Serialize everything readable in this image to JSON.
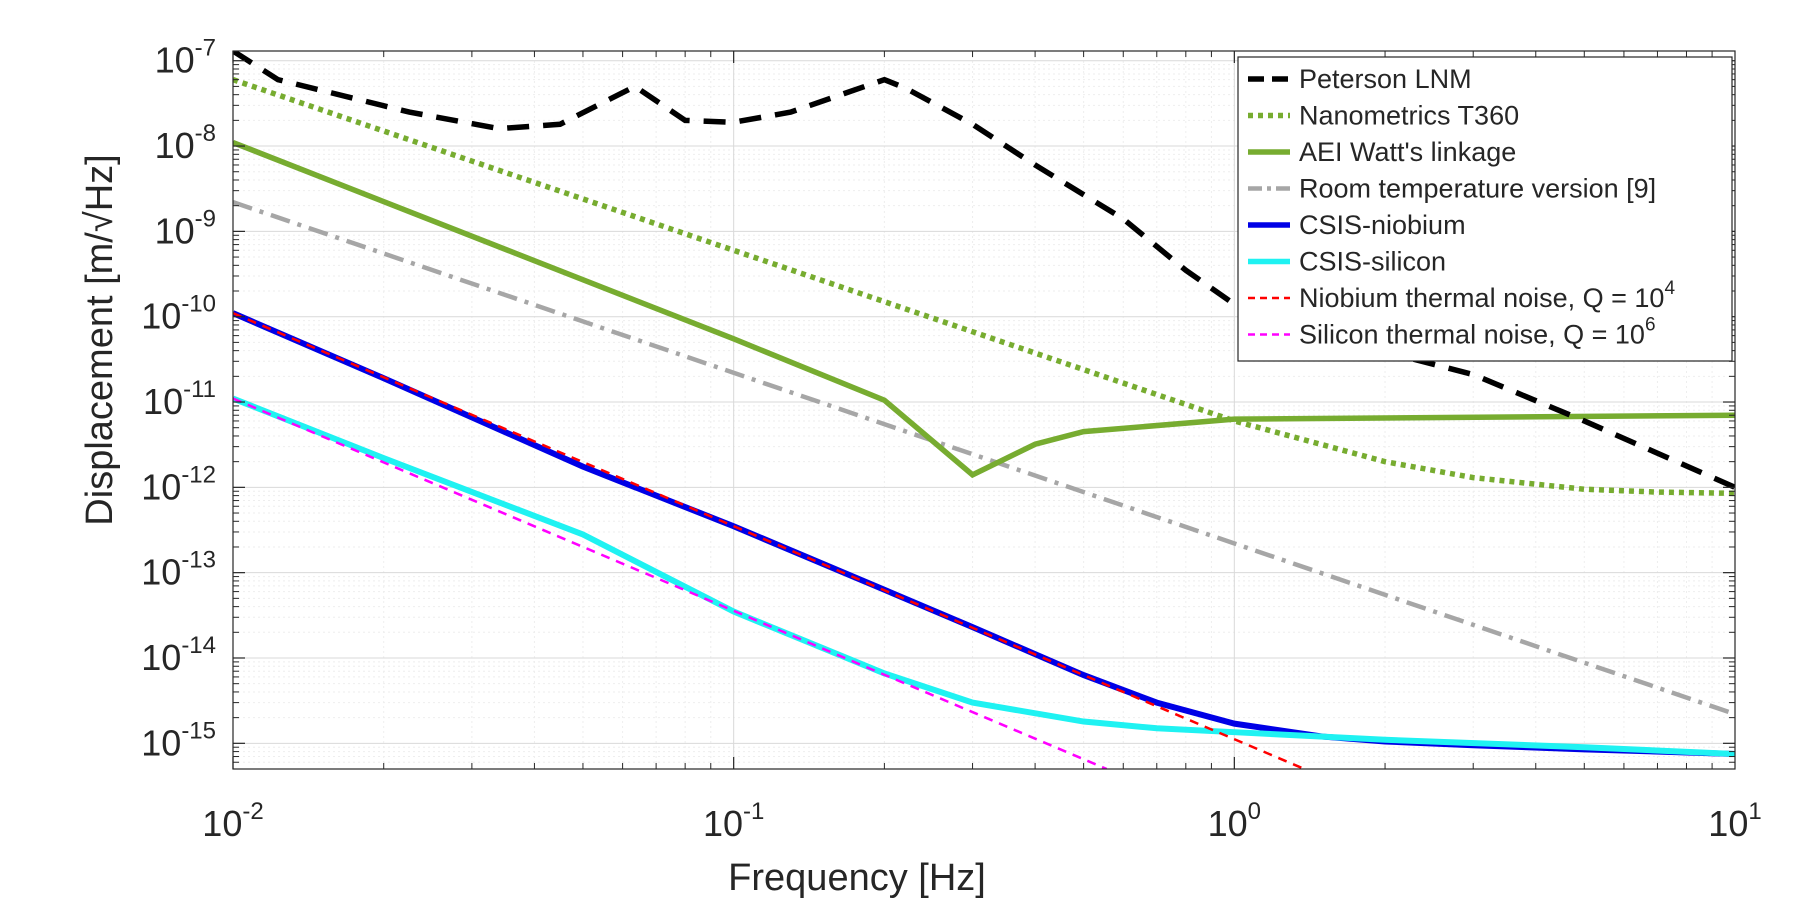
{
  "chart_data": {
    "type": "line",
    "xscale": "log",
    "yscale": "log",
    "xlabel": "Frequency [Hz]",
    "ylabel": "Displacement [m/√Hz]",
    "xlim": [
      0.01,
      10
    ],
    "ylim": [
      5e-16,
      1.3e-07
    ],
    "grid": true,
    "legend_position": "top-right",
    "x_ticks": [
      {
        "value": 0.01,
        "base": "10",
        "exp": "-2"
      },
      {
        "value": 0.1,
        "base": "10",
        "exp": "-1"
      },
      {
        "value": 1,
        "base": "10",
        "exp": "0"
      },
      {
        "value": 10,
        "base": "10",
        "exp": "1"
      }
    ],
    "y_ticks": [
      {
        "value": 1e-07,
        "base": "10",
        "exp": "-7"
      },
      {
        "value": 1e-08,
        "base": "10",
        "exp": "-8"
      },
      {
        "value": 1e-09,
        "base": "10",
        "exp": "-9"
      },
      {
        "value": 1e-10,
        "base": "10",
        "exp": "-10"
      },
      {
        "value": 1e-11,
        "base": "10",
        "exp": "-11"
      },
      {
        "value": 1e-12,
        "base": "10",
        "exp": "-12"
      },
      {
        "value": 1e-13,
        "base": "10",
        "exp": "-13"
      },
      {
        "value": 1e-14,
        "base": "10",
        "exp": "-14"
      },
      {
        "value": 1e-15,
        "base": "10",
        "exp": "-15"
      }
    ],
    "series": [
      {
        "id": "peterson",
        "name": "Peterson LNM",
        "name_sup": "",
        "color": "#000000",
        "style": "dashed",
        "x": [
          0.01,
          0.0123,
          0.0225,
          0.034,
          0.045,
          0.0635,
          0.08,
          0.1,
          0.13,
          0.2,
          0.22,
          0.3,
          0.4,
          0.6,
          0.8,
          1.0,
          1.5,
          3.0,
          5.0,
          10.0
        ],
        "y": [
          1.3e-07,
          6e-08,
          2.5e-08,
          1.6e-08,
          1.8e-08,
          5e-08,
          2e-08,
          1.9e-08,
          2.5e-08,
          6e-08,
          4.8e-08,
          1.8e-08,
          6e-09,
          1.4e-09,
          3.5e-10,
          1.4e-10,
          6e-11,
          2.1e-11,
          6e-12,
          1e-12
        ]
      },
      {
        "id": "t360",
        "name": "Nanometrics T360",
        "name_sup": "",
        "color": "#77ac30",
        "style": "dotted",
        "x": [
          0.01,
          0.02,
          0.05,
          0.1,
          0.2,
          0.5,
          1.0,
          2.0,
          3.0,
          5.0,
          7.0,
          10.0
        ],
        "y": [
          6e-08,
          1.5e-08,
          2.4e-09,
          6e-10,
          1.5e-10,
          2.4e-11,
          6e-12,
          2e-12,
          1.3e-12,
          9.5e-13,
          8.8e-13,
          8.5e-13
        ]
      },
      {
        "id": "aei",
        "name": "AEI Watt's linkage",
        "name_sup": "",
        "color": "#77ac30",
        "style": "solid",
        "x": [
          0.01,
          0.1,
          0.2,
          0.3,
          0.4,
          0.5,
          1.0,
          10.0
        ],
        "y": [
          1.1e-08,
          5.5e-11,
          1.05e-11,
          1.4e-12,
          3.2e-12,
          4.5e-12,
          6.3e-12,
          7e-12
        ]
      },
      {
        "id": "room",
        "name": "Room temperature version [9]",
        "name_sup": "",
        "color": "#a6a6a6",
        "style": "dashdot",
        "x": [
          0.01,
          10.0
        ],
        "y": [
          2.2e-09,
          2.2e-15
        ]
      },
      {
        "id": "nb",
        "name": "CSIS-niobium",
        "name_sup": "",
        "color": "#0000e6",
        "style": "solid",
        "x": [
          0.01,
          0.02,
          0.05,
          0.1,
          0.2,
          0.3,
          0.5,
          0.7,
          1.0,
          1.5,
          2.0,
          3.0,
          5.0,
          10.0
        ],
        "y": [
          1.1e-10,
          1.9e-11,
          1.75e-12,
          3.5e-13,
          6.3e-14,
          2.3e-14,
          6.3e-15,
          3e-15,
          1.7e-15,
          1.2e-15,
          1.05e-15,
          9.5e-16,
          8.5e-16,
          7.5e-16
        ]
      },
      {
        "id": "si",
        "name": "CSIS-silicon",
        "name_sup": "",
        "color": "#1ff2f2",
        "style": "solid",
        "x": [
          0.01,
          0.02,
          0.05,
          0.1,
          0.2,
          0.3,
          0.5,
          0.7,
          1.0,
          2.0,
          5.0,
          10.0
        ],
        "y": [
          1.1e-11,
          2.2e-12,
          2.8e-13,
          3.5e-14,
          6.6e-15,
          3e-15,
          1.8e-15,
          1.5e-15,
          1.35e-15,
          1.1e-15,
          9e-16,
          7.5e-16
        ]
      },
      {
        "id": "nbth",
        "name": "Niobium thermal noise, Q = 10",
        "name_sup": "4",
        "color": "#ff0000",
        "style": "thin-dashed",
        "x": [
          0.01,
          1.38
        ],
        "y": [
          1.1e-10,
          5e-16
        ]
      },
      {
        "id": "sith",
        "name": "Silicon thermal noise, Q = 10",
        "name_sup": "6",
        "color": "#ff00ff",
        "style": "thin-dashed",
        "x": [
          0.01,
          0.556
        ],
        "y": [
          1.1e-11,
          5e-16
        ]
      }
    ]
  }
}
